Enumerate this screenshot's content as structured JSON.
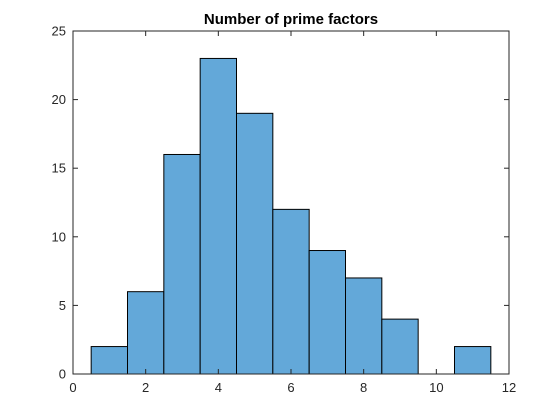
{
  "chart_data": {
    "type": "bar",
    "title": "Number of prime factors",
    "xlabel": "",
    "ylabel": "",
    "xlim": [
      0,
      12
    ],
    "ylim": [
      0,
      25
    ],
    "xticks": [
      0,
      2,
      4,
      6,
      8,
      10,
      12
    ],
    "yticks": [
      0,
      5,
      10,
      15,
      20,
      25
    ],
    "bin_width": 1,
    "bin_centers": [
      1,
      2,
      3,
      4,
      5,
      6,
      7,
      8,
      9,
      10,
      11
    ],
    "values": [
      2,
      6,
      16,
      23,
      19,
      12,
      9,
      7,
      4,
      0,
      2
    ],
    "bar_color": "#63a8d9",
    "edge_color": "#000000",
    "grid": false
  }
}
